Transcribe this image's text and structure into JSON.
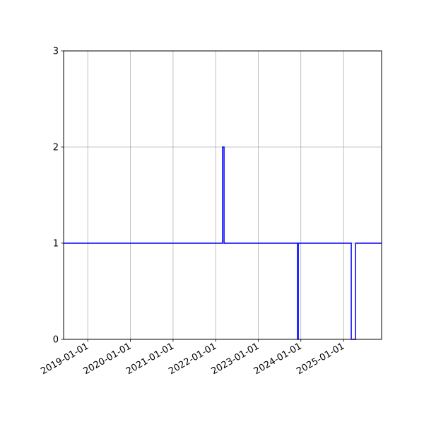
{
  "chart_data": {
    "type": "line",
    "step": "post",
    "title": "",
    "xlabel": "",
    "ylabel": "",
    "xlim": [
      "2018-06-08",
      "2025-11-23"
    ],
    "ylim": [
      0,
      3
    ],
    "grid": true,
    "x_ticks": [
      "2019-01-01",
      "2020-01-01",
      "2021-01-01",
      "2022-01-01",
      "2023-01-01",
      "2024-01-01",
      "2025-01-01"
    ],
    "y_ticks": [
      0,
      1,
      2,
      3
    ],
    "series": [
      {
        "color": "#0000ff",
        "x": [
          "2018-06-08",
          "2022-03-01",
          "2022-03-14",
          "2023-12-04",
          "2023-12-10",
          "2025-03-08",
          "2025-04-14",
          "2025-11-23"
        ],
        "y": [
          1,
          2,
          1,
          0,
          1,
          0,
          1,
          1
        ]
      }
    ]
  }
}
